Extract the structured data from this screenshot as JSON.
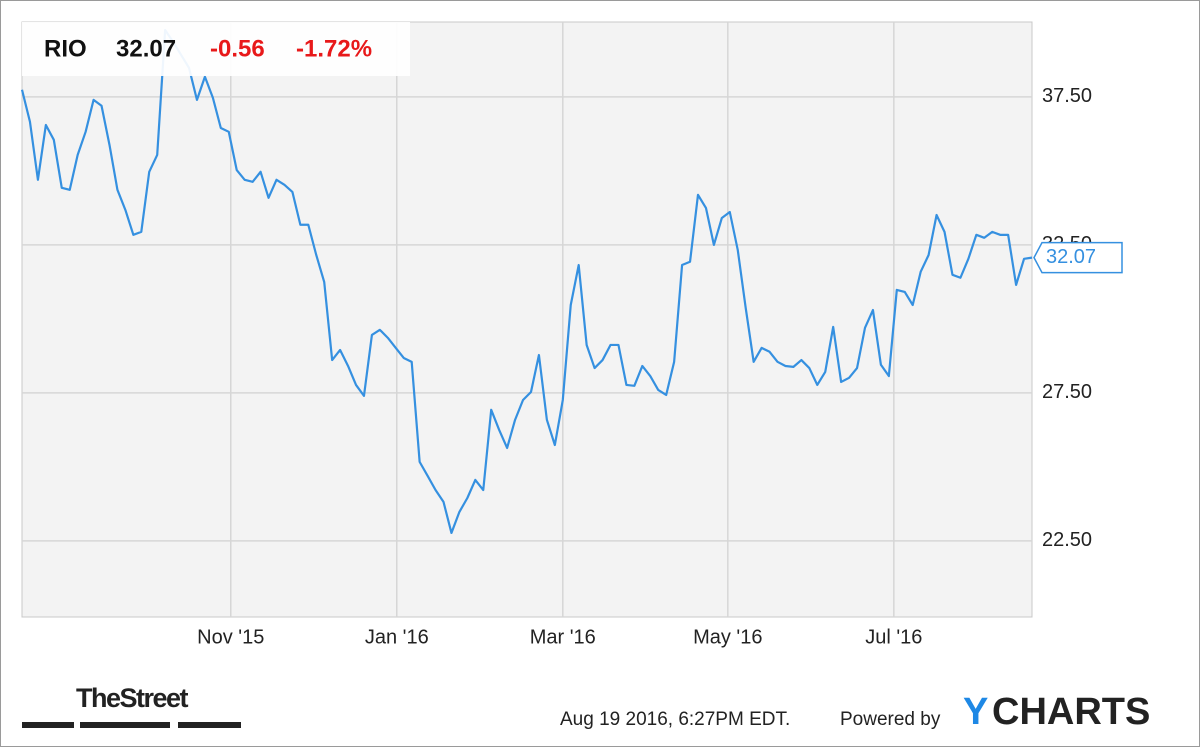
{
  "chart_data": {
    "type": "line",
    "ticker": "RIO",
    "change": "-0.56",
    "change_percent": "-1.72%",
    "source": "TheStreet",
    "timestamp": "Aug 19 2016, 6:27PM EDT.",
    "powered_by": "Powered by",
    "brand_mark": "Y",
    "brand_name": "CHARTS",
    "grid": true,
    "xlim": [
      2015.623,
      2016.639
    ],
    "ylim": [
      19.93,
      40.03
    ],
    "xticks": [
      {
        "value": 2015.833,
        "label": "Nov '15"
      },
      {
        "value": 2016.0,
        "label": "Jan '16"
      },
      {
        "value": 2016.167,
        "label": "Mar '16"
      },
      {
        "value": 2016.333,
        "label": "May '16"
      },
      {
        "value": 2016.5,
        "label": "Jul '16"
      }
    ],
    "yticks": [
      {
        "value": 22.5,
        "label": "22.50"
      },
      {
        "value": 27.5,
        "label": "27.50"
      },
      {
        "value": 32.5,
        "label": "32.50"
      },
      {
        "value": 37.5,
        "label": "37.50"
      }
    ],
    "series": [
      {
        "name": "RIO",
        "color": "#3590e0",
        "x": [
          2015.623,
          2015.631,
          2015.639,
          2015.647,
          2015.655,
          2015.663,
          2015.671,
          2015.679,
          2015.687,
          2015.695,
          2015.703,
          2015.711,
          2015.719,
          2015.727,
          2015.735,
          2015.743,
          2015.751,
          2015.759,
          2015.767,
          2015.775,
          2015.783,
          2015.791,
          2015.799,
          2015.807,
          2015.815,
          2015.823,
          2015.831,
          2015.839,
          2015.847,
          2015.855,
          2015.863,
          2015.871,
          2015.879,
          2015.887,
          2015.895,
          2015.903,
          2015.911,
          2015.919,
          2015.927,
          2015.935,
          2015.943,
          2015.951,
          2015.959,
          2015.967,
          2015.975,
          2015.983,
          2015.991,
          2015.999,
          2016.007,
          2016.015,
          2016.023,
          2016.031,
          2016.039,
          2016.047,
          2016.055,
          2016.063,
          2016.071,
          2016.079,
          2016.087,
          2016.095,
          2016.103,
          2016.111,
          2016.119,
          2016.127,
          2016.135,
          2016.143,
          2016.151,
          2016.159,
          2016.167,
          2016.175,
          2016.183,
          2016.191,
          2016.199,
          2016.207,
          2016.215,
          2016.223,
          2016.231,
          2016.239,
          2016.247,
          2016.255,
          2016.263,
          2016.271,
          2016.279,
          2016.287,
          2016.295,
          2016.303,
          2016.311,
          2016.319,
          2016.327,
          2016.335,
          2016.343,
          2016.351,
          2016.359,
          2016.367,
          2016.375,
          2016.383,
          2016.391,
          2016.399,
          2016.407,
          2016.415,
          2016.423,
          2016.431,
          2016.439,
          2016.447,
          2016.455,
          2016.463,
          2016.471,
          2016.479,
          2016.487,
          2016.495,
          2016.503,
          2016.511,
          2016.519,
          2016.527,
          2016.535,
          2016.543,
          2016.551,
          2016.559,
          2016.567,
          2016.575,
          2016.583,
          2016.591,
          2016.599,
          2016.607,
          2016.615,
          2016.623,
          2016.631,
          2016.639
        ],
        "values": [
          37.74,
          36.66,
          34.7,
          36.55,
          36.05,
          34.43,
          34.36,
          35.54,
          36.32,
          37.4,
          37.2,
          35.88,
          34.36,
          33.68,
          32.84,
          32.94,
          34.97,
          35.54,
          39.76,
          39.36,
          38.92,
          38.48,
          37.4,
          38.18,
          37.47,
          36.45,
          36.32,
          35.03,
          34.7,
          34.63,
          34.97,
          34.09,
          34.7,
          34.53,
          34.29,
          33.18,
          33.18,
          32.16,
          31.25,
          28.61,
          28.95,
          28.41,
          27.77,
          27.4,
          29.46,
          29.63,
          29.36,
          29.02,
          28.68,
          28.55,
          25.17,
          24.7,
          24.22,
          23.82,
          22.77,
          23.48,
          23.95,
          24.56,
          24.22,
          26.93,
          26.25,
          25.64,
          26.59,
          27.26,
          27.53,
          28.78,
          26.59,
          25.74,
          27.26,
          30.47,
          31.82,
          29.12,
          28.34,
          28.61,
          29.12,
          29.12,
          27.77,
          27.74,
          28.41,
          28.07,
          27.6,
          27.43,
          28.55,
          31.82,
          31.93,
          34.19,
          33.75,
          32.5,
          33.41,
          33.61,
          32.33,
          30.37,
          28.55,
          29.02,
          28.89,
          28.55,
          28.41,
          28.38,
          28.61,
          28.34,
          27.77,
          28.21,
          29.73,
          27.87,
          28.01,
          28.34,
          29.7,
          30.3,
          28.45,
          28.07,
          30.98,
          30.91,
          30.47,
          31.59,
          32.16,
          33.51,
          32.94,
          31.49,
          31.39,
          32.03,
          32.84,
          32.74,
          32.94,
          32.84,
          32.84,
          31.15,
          32.03,
          32.07
        ]
      }
    ]
  }
}
